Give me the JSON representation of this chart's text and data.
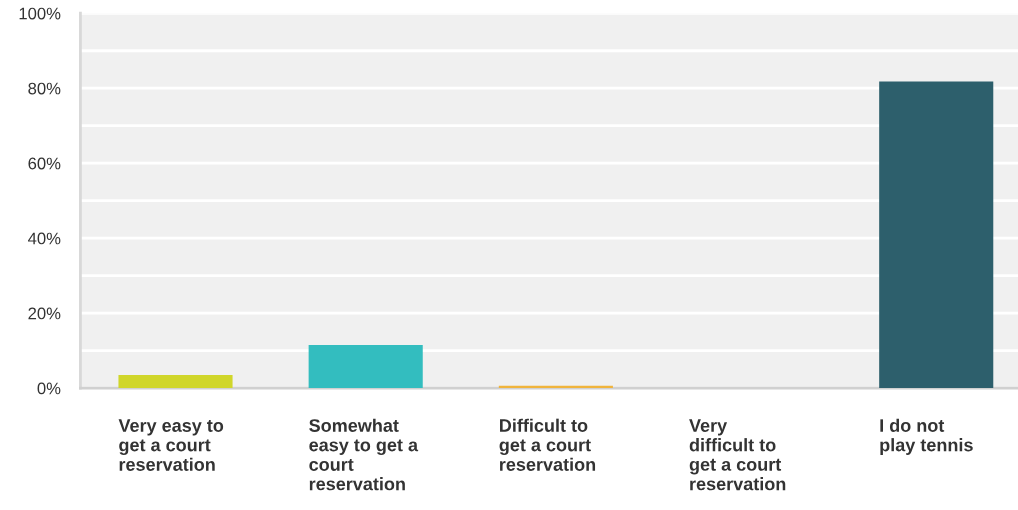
{
  "chart_data": {
    "type": "bar",
    "categories": [
      "Very easy to\nget a court\nreservation",
      "Somewhat\neasy to get a\ncourt\nreservation",
      "Difficult to\nget a court\nreservation",
      "Very\ndifficult to\nget a court\nreservation",
      "I do not\nplay tennis"
    ],
    "values": [
      3.5,
      11.5,
      0.6,
      0,
      81.8
    ],
    "colors": [
      "#d0d62a",
      "#33bdbf",
      "#f0b43c",
      "#9fa3a8",
      "#2d5f6c"
    ],
    "ylim": [
      0,
      100
    ],
    "yticks": [
      {
        "value": 0,
        "label": "0%"
      },
      {
        "value": 10,
        "label": null
      },
      {
        "value": 20,
        "label": "20%"
      },
      {
        "value": 30,
        "label": null
      },
      {
        "value": 40,
        "label": "40%"
      },
      {
        "value": 50,
        "label": null
      },
      {
        "value": 60,
        "label": "60%"
      },
      {
        "value": 70,
        "label": null
      },
      {
        "value": 80,
        "label": "80%"
      },
      {
        "value": 90,
        "label": null
      },
      {
        "value": 100,
        "label": "100%"
      }
    ],
    "grid": "y"
  }
}
